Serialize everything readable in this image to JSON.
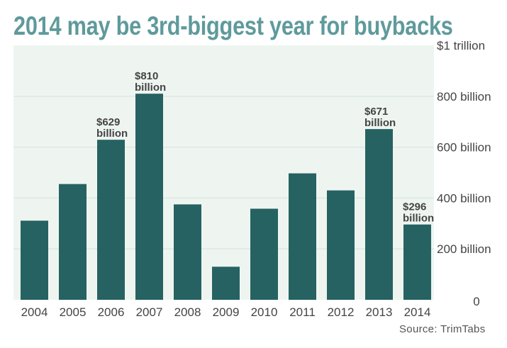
{
  "chart_data": {
    "type": "bar",
    "title": "2014 may be 3rd-biggest year for buybacks",
    "categories": [
      "2004",
      "2005",
      "2006",
      "2007",
      "2008",
      "2009",
      "2010",
      "2011",
      "2012",
      "2013",
      "2014"
    ],
    "values": [
      311,
      455,
      629,
      810,
      375,
      130,
      358,
      497,
      430,
      671,
      296
    ],
    "unit": "billion USD",
    "ylim": [
      0,
      1000
    ],
    "yticks": [
      0,
      200,
      400,
      600,
      800,
      1000
    ],
    "ytick_labels": [
      "0",
      "200 billion",
      "400 billion",
      "600 billion",
      "800 billion",
      "$1 trillion"
    ],
    "y_axis_side": "right",
    "grid": true,
    "data_labels": [
      {
        "category": "2006",
        "line1": "$629",
        "line2": "billion"
      },
      {
        "category": "2007",
        "line1": "$810",
        "line2": "billion"
      },
      {
        "category": "2013",
        "line1": "$671",
        "line2": "billion"
      },
      {
        "category": "2014",
        "line1": "$296",
        "line2": "billion"
      }
    ],
    "source": "Source: TrimTabs",
    "colors": {
      "bar": "#266262",
      "plot_bg": "#eef5f1",
      "title": "#5f9a9c",
      "grid": "#dbe8e3"
    }
  }
}
